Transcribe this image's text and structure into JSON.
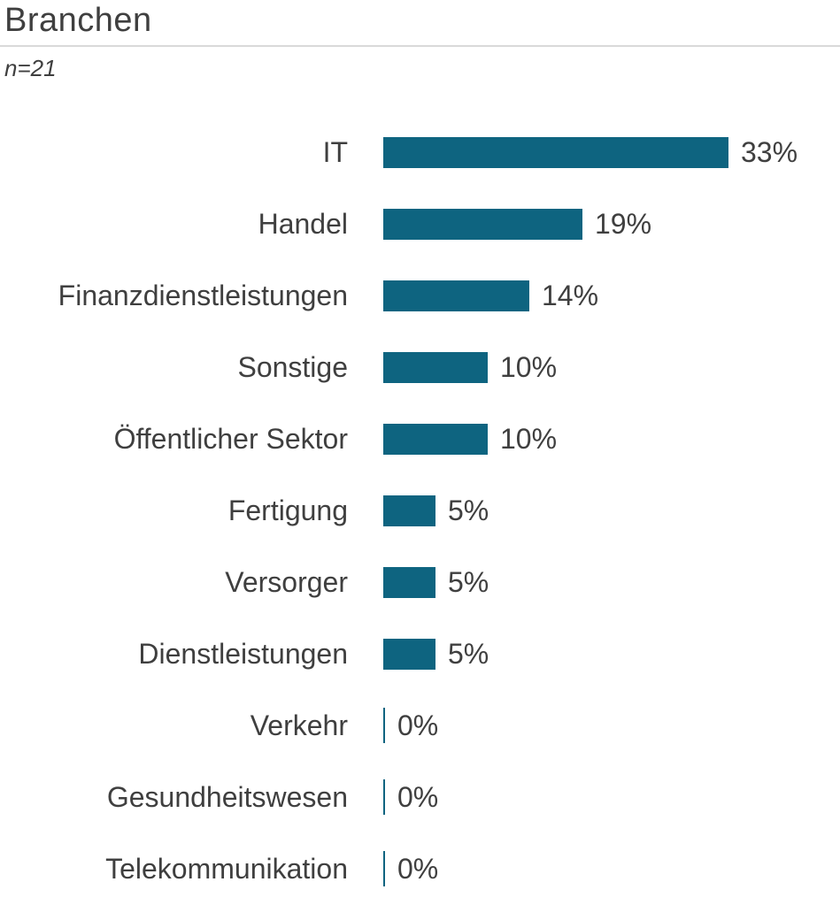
{
  "title": "Branchen",
  "subtitle": "n=21",
  "colors": {
    "bar": "#0e6480",
    "text": "#3f3f3f",
    "divider": "#d9d9d9"
  },
  "chart_data": {
    "type": "bar",
    "orientation": "horizontal",
    "title": "Branchen",
    "subtitle": "n=21",
    "xlabel": "",
    "ylabel": "",
    "xlim": [
      0,
      40
    ],
    "grid": false,
    "legend": false,
    "categories": [
      "IT",
      "Handel",
      "Finanzdienstleistungen",
      "Sonstige",
      "Öffentlicher Sektor",
      "Fertigung",
      "Versorger",
      "Dienstleistungen",
      "Verkehr",
      "Gesundheitswesen",
      "Telekommunikation"
    ],
    "values": [
      33,
      19,
      14,
      10,
      10,
      5,
      5,
      5,
      0,
      0,
      0
    ],
    "value_labels": [
      "33%",
      "19%",
      "14%",
      "10%",
      "10%",
      "5%",
      "5%",
      "5%",
      "0%",
      "0%",
      "0%"
    ]
  }
}
